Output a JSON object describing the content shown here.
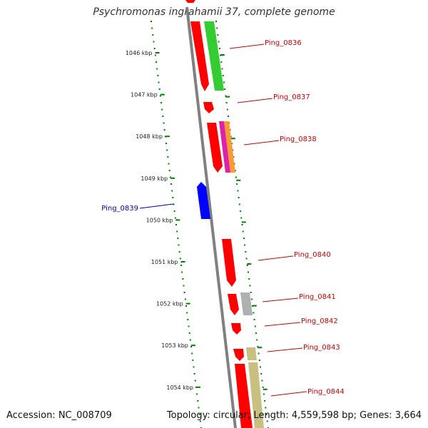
{
  "header": {
    "title": "Psychromonas ingrahamii 37, complete genome"
  },
  "footer": {
    "accession": "Accession: NC_008709",
    "info": "Topology: circular; Length: 4,559,598 bp; Genes: 3,664"
  },
  "colors": {
    "axis": "#808080",
    "ticks": "#008000",
    "label_red": "#cc0000",
    "label_blue": "#0000aa",
    "gene_red": "#ff0000",
    "gene_green": "#33cc33",
    "gene_blue": "#0000ff",
    "gene_gray": "#b0b0b0",
    "gene_olive": "#c8c080"
  },
  "scale": {
    "kbp_labels": [
      "1046 kbp",
      "1047 kbp",
      "1048 kbp",
      "1049 kbp",
      "1050 kbp",
      "1051 kbp",
      "1052 kbp",
      "1053 kbp",
      "1054 kbp"
    ]
  },
  "genes": [
    {
      "label": "Ping_0836",
      "side": "right",
      "color": "gene_red"
    },
    {
      "label": "Ping_0837",
      "side": "right",
      "color": "gene_red"
    },
    {
      "label": "Ping_0838",
      "side": "right",
      "color": "gene_red"
    },
    {
      "label": "Ping_0839",
      "side": "left",
      "color": "gene_blue"
    },
    {
      "label": "Ping_0840",
      "side": "right",
      "color": "gene_red"
    },
    {
      "label": "Ping_0841",
      "side": "right",
      "color": "gene_red"
    },
    {
      "label": "Ping_0842",
      "side": "right",
      "color": "gene_red"
    },
    {
      "label": "Ping_0843",
      "side": "right",
      "color": "gene_red"
    },
    {
      "label": "Ping_0844",
      "side": "right",
      "color": "gene_red"
    }
  ]
}
